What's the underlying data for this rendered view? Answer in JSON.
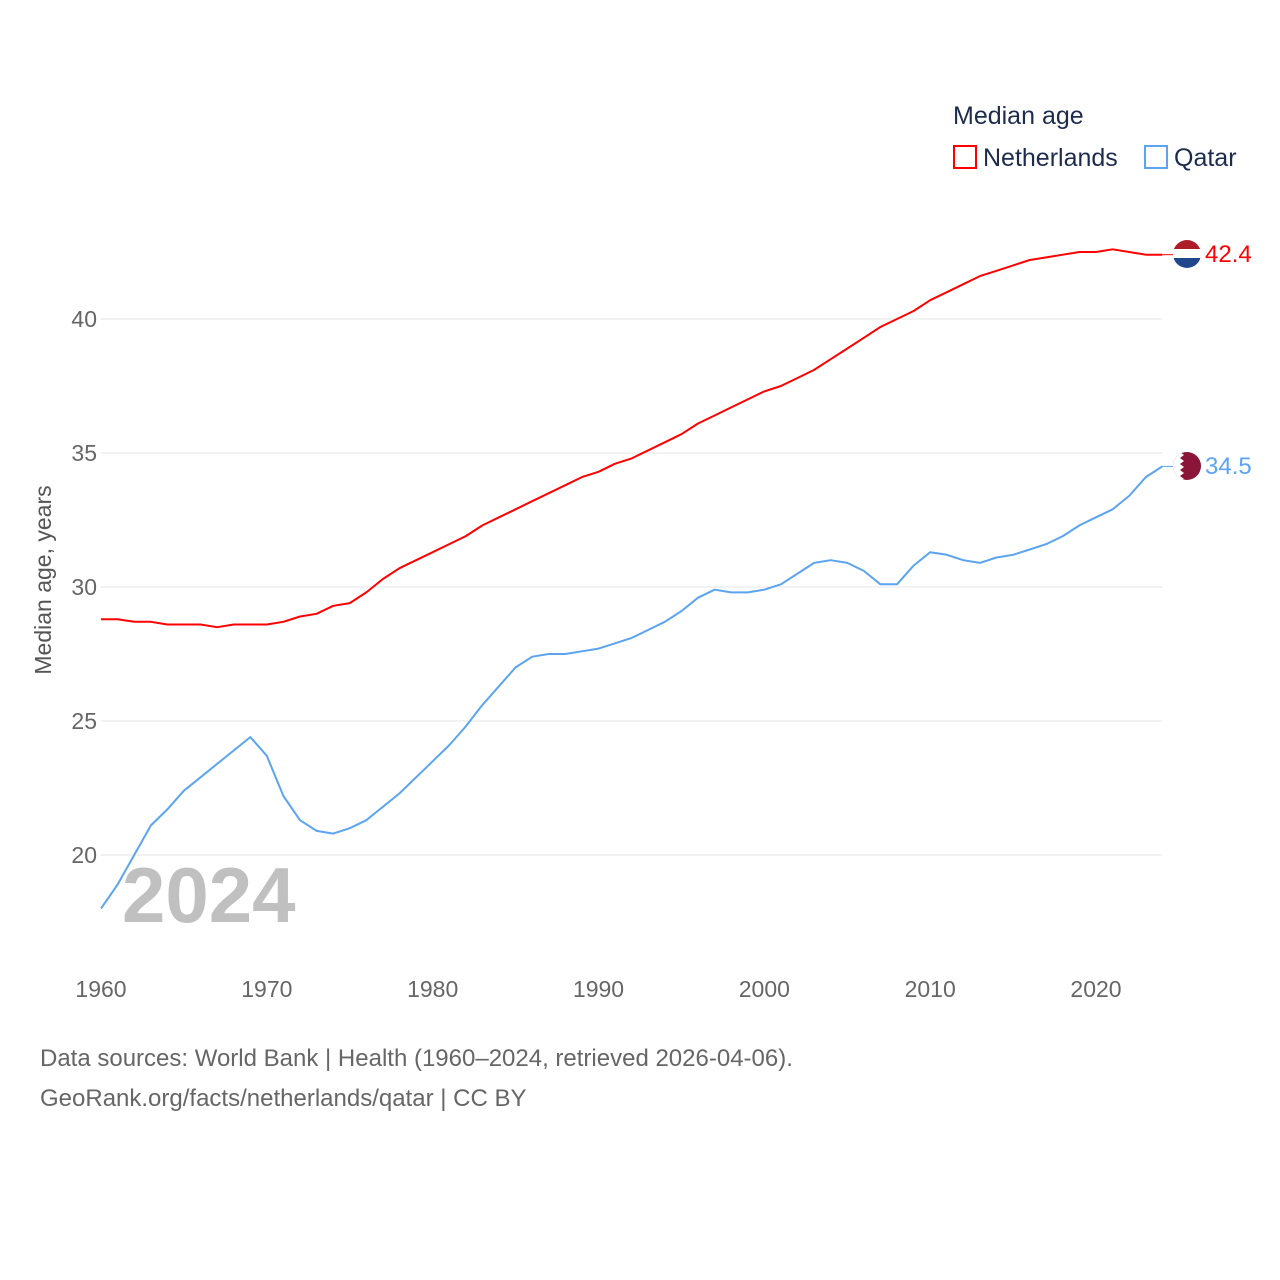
{
  "chart_data": {
    "type": "line",
    "title": "",
    "legend_title": "Median age",
    "ylabel": "Median age, years",
    "xlabel": "",
    "xlim": [
      1960,
      2024
    ],
    "ylim": [
      17.5,
      43
    ],
    "x_ticks": [
      "1960",
      "1970",
      "1980",
      "1990",
      "2000",
      "2010",
      "2020"
    ],
    "y_ticks": [
      "20",
      "25",
      "30",
      "35",
      "40"
    ],
    "grid": true,
    "legend_position": "top-right",
    "year_overlay": "2024",
    "x": [
      1960,
      1961,
      1962,
      1963,
      1964,
      1965,
      1966,
      1967,
      1968,
      1969,
      1970,
      1971,
      1972,
      1973,
      1974,
      1975,
      1976,
      1977,
      1978,
      1979,
      1980,
      1981,
      1982,
      1983,
      1984,
      1985,
      1986,
      1987,
      1988,
      1989,
      1990,
      1991,
      1992,
      1993,
      1994,
      1995,
      1996,
      1997,
      1998,
      1999,
      2000,
      2001,
      2002,
      2003,
      2004,
      2005,
      2006,
      2007,
      2008,
      2009,
      2010,
      2011,
      2012,
      2013,
      2014,
      2015,
      2016,
      2017,
      2018,
      2019,
      2020,
      2021,
      2022,
      2023,
      2024
    ],
    "series": [
      {
        "name": "Netherlands",
        "color": "#ff0000",
        "end_label": "42.4",
        "values": [
          28.8,
          28.8,
          28.7,
          28.7,
          28.6,
          28.6,
          28.6,
          28.5,
          28.6,
          28.6,
          28.6,
          28.7,
          28.9,
          29.0,
          29.3,
          29.4,
          29.8,
          30.3,
          30.7,
          31.0,
          31.3,
          31.6,
          31.9,
          32.3,
          32.6,
          32.9,
          33.2,
          33.5,
          33.8,
          34.1,
          34.3,
          34.6,
          34.8,
          35.1,
          35.4,
          35.7,
          36.1,
          36.4,
          36.7,
          37.0,
          37.3,
          37.5,
          37.8,
          38.1,
          38.5,
          38.9,
          39.3,
          39.7,
          40.0,
          40.3,
          40.7,
          41.0,
          41.3,
          41.6,
          41.8,
          42.0,
          42.2,
          42.3,
          42.4,
          42.5,
          42.5,
          42.6,
          42.5,
          42.4,
          42.4
        ]
      },
      {
        "name": "Qatar",
        "color": "#5ba4f0",
        "end_label": "34.5",
        "values": [
          18.0,
          18.9,
          20.0,
          21.1,
          21.7,
          22.4,
          22.9,
          23.4,
          23.9,
          24.4,
          23.7,
          22.2,
          21.3,
          20.9,
          20.8,
          21.0,
          21.3,
          21.8,
          22.3,
          22.9,
          23.5,
          24.1,
          24.8,
          25.6,
          26.3,
          27.0,
          27.4,
          27.5,
          27.5,
          27.6,
          27.7,
          27.9,
          28.1,
          28.4,
          28.7,
          29.1,
          29.6,
          29.9,
          29.8,
          29.8,
          29.9,
          30.1,
          30.5,
          30.9,
          31.0,
          30.9,
          30.6,
          30.1,
          30.1,
          30.8,
          31.3,
          31.2,
          31.0,
          30.9,
          31.1,
          31.2,
          31.4,
          31.6,
          31.9,
          32.3,
          32.6,
          32.9,
          33.4,
          34.1,
          34.5
        ]
      }
    ]
  },
  "footer": {
    "line1": "Data sources: World Bank | Health (1960–2024, retrieved 2026-04-06).",
    "line2": "GeoRank.org/facts/netherlands/qatar | CC BY"
  }
}
